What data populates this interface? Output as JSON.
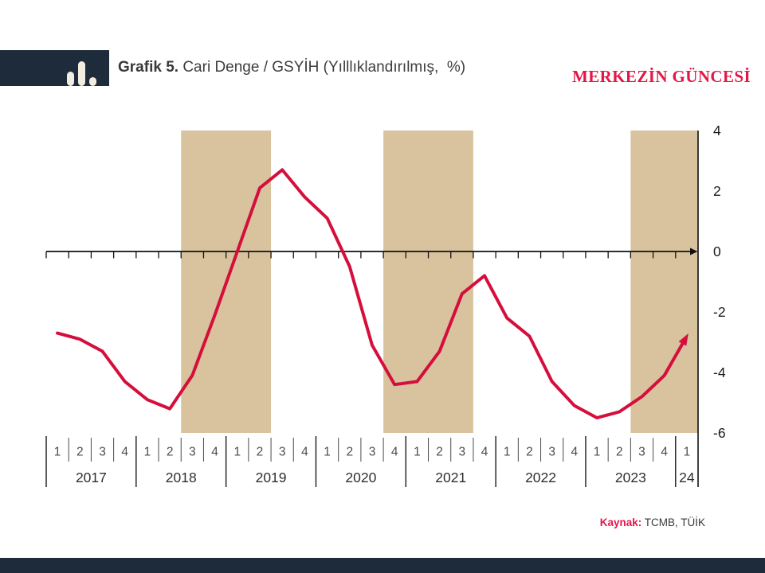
{
  "header": {
    "title_bold": "Grafik 5.",
    "title_rest": " Cari Denge / GSYİH (Yılllıklandırılmış,  %)",
    "logo_text": "MERKEZİN GÜNCESİ"
  },
  "source": {
    "label_bold": "Kaynak:",
    "label_rest": " TCMB, TÜİK"
  },
  "colors": {
    "navy": "#1d2b3a",
    "crimson_line": "#d50f3c",
    "logo_red": "#e31747",
    "band_tan": "#d8c39e",
    "axis_black": "#111111",
    "quarter_gray": "#4d4d4d",
    "year_gray": "#2e2e2e",
    "ytick_black": "#1a1a1a"
  },
  "chart_data": {
    "type": "line",
    "title": "Cari Denge / GSYİH (Yılllıklandırılmış, %)",
    "ylabel": "%",
    "ylim": [
      -6,
      4
    ],
    "yticks": [
      4,
      2,
      0,
      "-2",
      "-4",
      "-6"
    ],
    "grid": false,
    "legend": "none",
    "years": [
      {
        "label": "2017",
        "quarters": [
          "1",
          "2",
          "3",
          "4"
        ]
      },
      {
        "label": "2018",
        "quarters": [
          "1",
          "2",
          "3",
          "4"
        ]
      },
      {
        "label": "2019",
        "quarters": [
          "1",
          "2",
          "3",
          "4"
        ]
      },
      {
        "label": "2020",
        "quarters": [
          "1",
          "2",
          "3",
          "4"
        ]
      },
      {
        "label": "2021",
        "quarters": [
          "1",
          "2",
          "3",
          "4"
        ]
      },
      {
        "label": "2022",
        "quarters": [
          "1",
          "2",
          "3",
          "4"
        ]
      },
      {
        "label": "2023",
        "quarters": [
          "1",
          "2",
          "3",
          "4"
        ]
      },
      {
        "label": "24",
        "quarters": [
          "1"
        ]
      }
    ],
    "values": [
      -2.7,
      -2.9,
      -3.3,
      -4.3,
      -4.9,
      -5.2,
      -4.1,
      -2.1,
      0.0,
      2.1,
      2.7,
      1.8,
      1.1,
      -0.5,
      -3.1,
      -4.4,
      -4.3,
      -3.3,
      -1.4,
      -0.8,
      -2.2,
      -2.8,
      -4.3,
      -5.1,
      -5.5,
      -5.3,
      -4.8,
      -4.1,
      -2.8
    ],
    "series_ends_with_arrow": true,
    "shaded_bands_quarter_indices": [
      {
        "from": 6,
        "to": 9
      },
      {
        "from": 15,
        "to": 18
      },
      {
        "from": 26,
        "to": 28
      }
    ]
  }
}
